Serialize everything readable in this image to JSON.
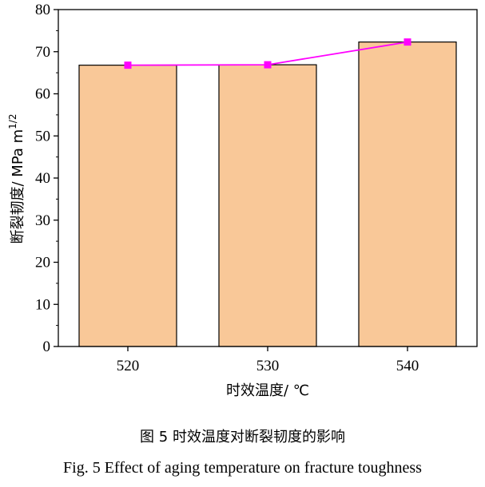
{
  "chart_data": {
    "type": "bar",
    "categories": [
      "520",
      "530",
      "540"
    ],
    "values": [
      66.8,
      66.9,
      72.3
    ],
    "line_values": [
      66.8,
      66.9,
      72.3
    ],
    "xlabel": "时效温度/ ℃",
    "ylabel": "断裂韧度/ MPa m",
    "ylabel_superscript": "1/2",
    "ylim": [
      0,
      80
    ],
    "yticks": [
      0,
      10,
      20,
      30,
      40,
      50,
      60,
      70,
      80
    ],
    "grid": false,
    "bar_color": "#F9C898",
    "bar_edge_color": "#000000",
    "line_color": "#FF00FF"
  },
  "caption": {
    "zh": "图 5  时效温度对断裂韧度的影响",
    "en": "Fig. 5 Effect of aging temperature on fracture toughness"
  }
}
